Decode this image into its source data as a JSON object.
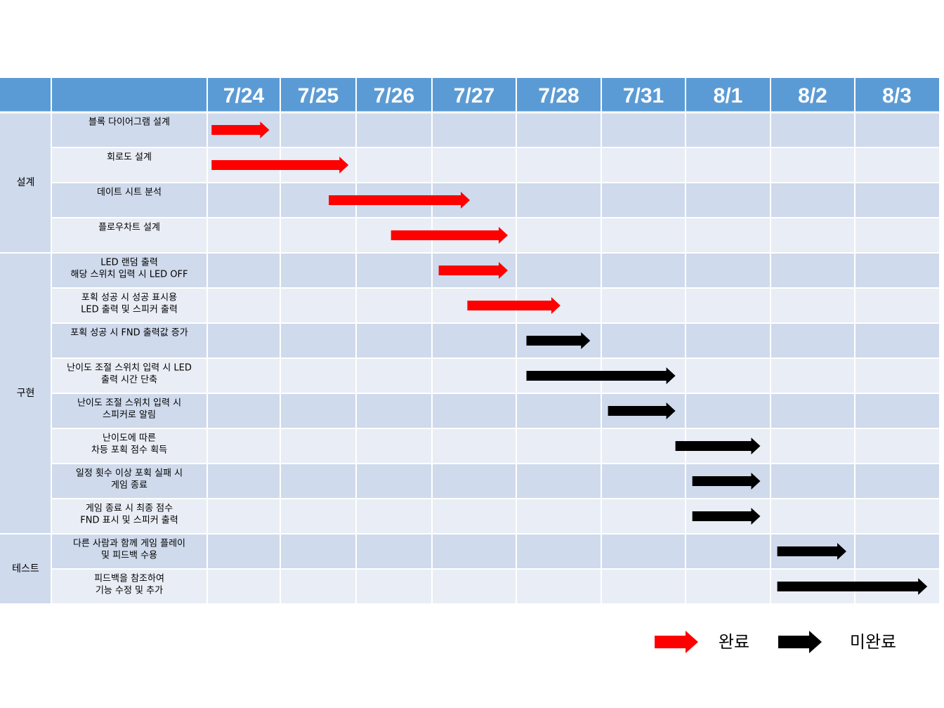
{
  "chart_data": {
    "type": "table",
    "dates": [
      "7/24",
      "7/25",
      "7/26",
      "7/27",
      "7/28",
      "7/31",
      "8/1",
      "8/2",
      "8/3"
    ],
    "categories": [
      {
        "label": "설계",
        "rows": [
          0,
          3
        ]
      },
      {
        "label": "구현",
        "rows": [
          4,
          11
        ]
      },
      {
        "label": "테스트",
        "rows": [
          12,
          13
        ]
      }
    ],
    "tasks": [
      {
        "lines": [
          "블록 다이어그램 설계"
        ],
        "start": 0.06,
        "end": 0.85,
        "status": "done"
      },
      {
        "lines": [
          "회로도 설계"
        ],
        "start": 0.06,
        "end": 1.9,
        "status": "done"
      },
      {
        "lines": [
          "데이트 시트 분석"
        ],
        "start": 1.64,
        "end": 3.45,
        "status": "done"
      },
      {
        "lines": [
          "플로우차트 설계"
        ],
        "start": 2.46,
        "end": 3.9,
        "status": "done"
      },
      {
        "lines": [
          "LED 랜덤 출력",
          "해당 스위치 입력 시 LED OFF"
        ],
        "start": 3.08,
        "end": 3.9,
        "status": "done"
      },
      {
        "lines": [
          "포획 성공 시 성공 표시용",
          "LED 출력 및 스피커 출력"
        ],
        "start": 3.42,
        "end": 4.52,
        "status": "done"
      },
      {
        "lines": [
          "포획 성공 시 FND 출력값 증가"
        ],
        "start": 4.12,
        "end": 4.87,
        "status": "pending"
      },
      {
        "lines": [
          "난이도 조절 스위치 입력 시 LED",
          "출력 시간 단축"
        ],
        "start": 4.12,
        "end": 5.88,
        "status": "pending"
      },
      {
        "lines": [
          "난이도 조절 스위치 입력 시",
          "스피커로 알림"
        ],
        "start": 5.08,
        "end": 5.88,
        "status": "pending"
      },
      {
        "lines": [
          "난이도에 따른",
          "차등 포획 점수 획득"
        ],
        "start": 5.88,
        "end": 6.88,
        "status": "pending"
      },
      {
        "lines": [
          "일정 횟수 이상 포획 실패 시",
          "게임 종료"
        ],
        "start": 6.08,
        "end": 6.88,
        "status": "pending"
      },
      {
        "lines": [
          "게임 종료 시 최종 점수",
          "FND 표시 및 스피커 출력"
        ],
        "start": 6.08,
        "end": 6.88,
        "status": "pending"
      },
      {
        "lines": [
          "다른 사람과 함께 게임 플레이",
          "및 피드백 수용"
        ],
        "start": 7.08,
        "end": 7.9,
        "status": "pending"
      },
      {
        "lines": [
          "피드백을 참조하여",
          "기능 수정 및 추가"
        ],
        "start": 7.08,
        "end": 8.86,
        "status": "pending"
      }
    ],
    "legend": [
      {
        "status": "done",
        "label": "완료"
      },
      {
        "status": "pending",
        "label": "미완료"
      }
    ]
  },
  "colors": {
    "header": "#5b9bd5",
    "row_dark": "#cfdaec",
    "row_light": "#e9edf5",
    "done": "#ff0000",
    "pending": "#000000",
    "grid": "#ffffff"
  }
}
